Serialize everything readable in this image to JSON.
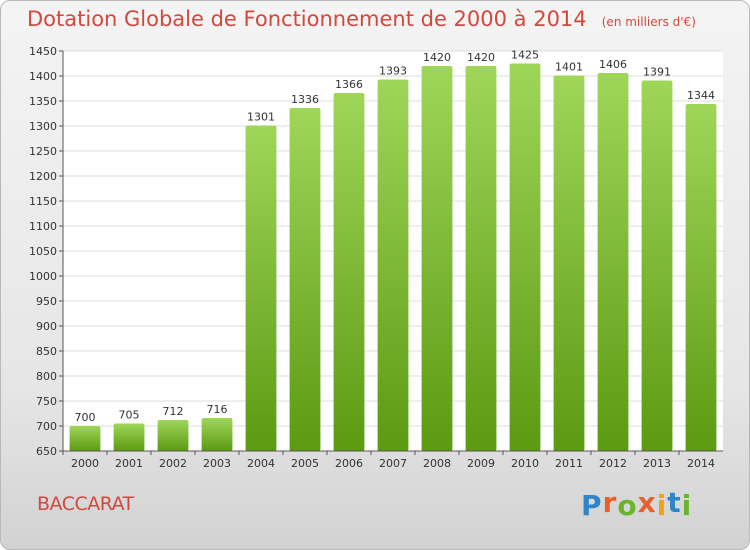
{
  "chart_data": {
    "type": "bar",
    "title": "Dotation Globale de Fonctionnement de 2000 à 2014",
    "unit": "(en milliers d'€)",
    "categories": [
      "2000",
      "2001",
      "2002",
      "2003",
      "2004",
      "2005",
      "2006",
      "2007",
      "2008",
      "2009",
      "2010",
      "2011",
      "2012",
      "2013",
      "2014"
    ],
    "values": [
      700,
      705,
      712,
      716,
      1301,
      1336,
      1366,
      1393,
      1420,
      1420,
      1425,
      1401,
      1406,
      1391,
      1344
    ],
    "ylim": [
      650,
      1450
    ],
    "yticks": [
      650,
      700,
      750,
      800,
      850,
      900,
      950,
      1000,
      1050,
      1100,
      1150,
      1200,
      1250,
      1300,
      1350,
      1400,
      1450
    ],
    "grid": true,
    "xlabel": "",
    "ylabel": ""
  },
  "commune": "BACCARAT",
  "logo": {
    "letters": [
      "P",
      "r",
      "o",
      "x",
      "i",
      "t",
      "i"
    ],
    "colors": [
      "#2e86c8",
      "#e8612c",
      "#6ab42d",
      "#e8612c",
      "#f0a020",
      "#2e86c8",
      "#6ab42d"
    ]
  },
  "colors": {
    "bar_top": "#9fd65a",
    "bar_bottom": "#5c9a12",
    "plot_bg": "#ffffff",
    "grid": "#dcdcdc"
  }
}
